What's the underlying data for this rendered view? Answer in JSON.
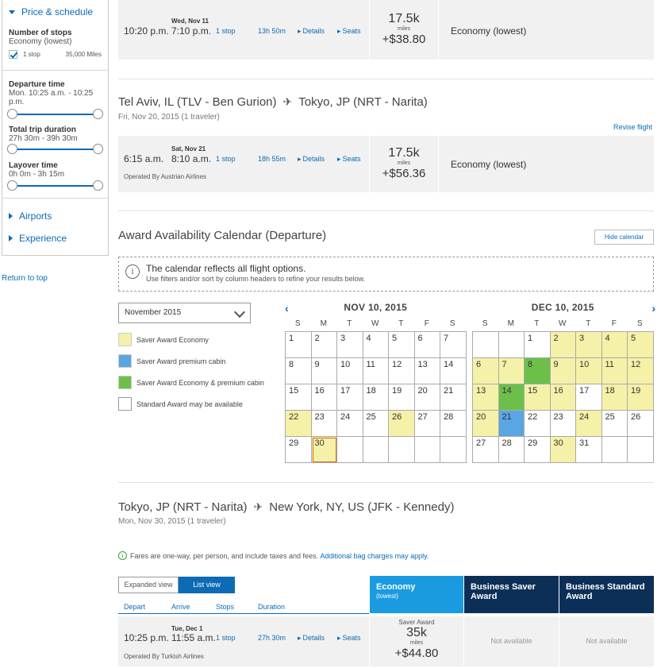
{
  "sidebar": {
    "price_schedule": "Price & schedule",
    "stops_title": "Number of stops",
    "stops_sub": "Economy (lowest)",
    "stop_option": "1 stop",
    "stop_miles": "35,000 Miles",
    "departure_title": "Departure time",
    "departure_range": "Mon. 10:25 a.m. - 10:25 p.m.",
    "trip_title": "Total trip duration",
    "trip_range": "27h 30m - 39h 30m",
    "layover_title": "Layover time",
    "layover_range": "0h 0m - 3h 15m",
    "airports": "Airports",
    "experience": "Experience"
  },
  "return_top": "Return to top",
  "flight1": {
    "depart": "10:20 p.m.",
    "arrive_date": "Wed, Nov 11",
    "arrive": "7:10 p.m.",
    "stops": "1 stop",
    "duration": "13h 50m",
    "details": "Details",
    "seats": "Seats",
    "miles": "17.5k",
    "miles_unit": "miles",
    "price": "+$38.80",
    "cabin": "Economy (lowest)"
  },
  "route2": {
    "from": "Tel Aviv, IL (TLV - Ben Gurion)",
    "to": "Tokyo, JP (NRT - Narita)",
    "date": "Fri, Nov 20, 2015 (1 traveler)",
    "revise": "Revise flight"
  },
  "flight2": {
    "depart": "6:15 a.m.",
    "arrive_date": "Sat, Nov 21",
    "arrive": "8:10 a.m.",
    "stops": "1 stop",
    "duration": "18h 55m",
    "details": "Details",
    "seats": "Seats",
    "operated": "Operated By Austrian Airlines",
    "miles": "17.5k",
    "miles_unit": "miles",
    "price": "+$56.36",
    "cabin": "Economy (lowest)"
  },
  "calendar": {
    "title": "Award Availability Calendar (Departure)",
    "hide": "Hide calendar",
    "note_title": "The calendar reflects all flight options.",
    "note_sub": "Use filters and/or sort by column headers to refine your results below.",
    "month_select": "November 2015",
    "legend": [
      {
        "label": "Saver Award Economy",
        "color": "#f5f1a8"
      },
      {
        "label": "Saver Award premium cabin",
        "color": "#5aa6e3"
      },
      {
        "label": "Saver Award Economy & premium cabin",
        "color": "#6cc04a"
      },
      {
        "label": "Standard Award may be available",
        "color": "#ffffff"
      }
    ],
    "dow": [
      "S",
      "M",
      "T",
      "W",
      "T",
      "F",
      "S"
    ],
    "months": [
      {
        "title": "NOV 10, 2015",
        "cells": [
          {
            "d": "1",
            "c": ""
          },
          {
            "d": "2",
            "c": ""
          },
          {
            "d": "3",
            "c": ""
          },
          {
            "d": "4",
            "c": ""
          },
          {
            "d": "5",
            "c": ""
          },
          {
            "d": "6",
            "c": ""
          },
          {
            "d": "7",
            "c": ""
          },
          {
            "d": "8",
            "c": ""
          },
          {
            "d": "9",
            "c": ""
          },
          {
            "d": "10",
            "c": ""
          },
          {
            "d": "11",
            "c": ""
          },
          {
            "d": "12",
            "c": ""
          },
          {
            "d": "13",
            "c": ""
          },
          {
            "d": "14",
            "c": ""
          },
          {
            "d": "15",
            "c": ""
          },
          {
            "d": "16",
            "c": ""
          },
          {
            "d": "17",
            "c": ""
          },
          {
            "d": "18",
            "c": ""
          },
          {
            "d": "19",
            "c": ""
          },
          {
            "d": "20",
            "c": ""
          },
          {
            "d": "21",
            "c": ""
          },
          {
            "d": "22",
            "c": "y"
          },
          {
            "d": "23",
            "c": ""
          },
          {
            "d": "24",
            "c": ""
          },
          {
            "d": "25",
            "c": ""
          },
          {
            "d": "26",
            "c": "y"
          },
          {
            "d": "27",
            "c": ""
          },
          {
            "d": "28",
            "c": ""
          },
          {
            "d": "29",
            "c": ""
          },
          {
            "d": "30",
            "c": "y today"
          },
          {
            "d": "",
            "c": "empty"
          },
          {
            "d": "",
            "c": "empty"
          },
          {
            "d": "",
            "c": "empty"
          },
          {
            "d": "",
            "c": "empty"
          },
          {
            "d": "",
            "c": "empty"
          }
        ]
      },
      {
        "title": "DEC 10, 2015",
        "cells": [
          {
            "d": "",
            "c": "empty"
          },
          {
            "d": "",
            "c": "empty"
          },
          {
            "d": "1",
            "c": ""
          },
          {
            "d": "2",
            "c": "y"
          },
          {
            "d": "3",
            "c": "y"
          },
          {
            "d": "4",
            "c": "y"
          },
          {
            "d": "5",
            "c": "y"
          },
          {
            "d": "6",
            "c": "y"
          },
          {
            "d": "7",
            "c": "y"
          },
          {
            "d": "8",
            "c": "g"
          },
          {
            "d": "9",
            "c": "y"
          },
          {
            "d": "10",
            "c": "y"
          },
          {
            "d": "11",
            "c": "y"
          },
          {
            "d": "12",
            "c": "y"
          },
          {
            "d": "13",
            "c": "y"
          },
          {
            "d": "14",
            "c": "g"
          },
          {
            "d": "15",
            "c": "y"
          },
          {
            "d": "16",
            "c": "y"
          },
          {
            "d": "17",
            "c": ""
          },
          {
            "d": "18",
            "c": "y"
          },
          {
            "d": "19",
            "c": "y"
          },
          {
            "d": "20",
            "c": "y"
          },
          {
            "d": "21",
            "c": "b"
          },
          {
            "d": "22",
            "c": ""
          },
          {
            "d": "23",
            "c": ""
          },
          {
            "d": "24",
            "c": "y"
          },
          {
            "d": "25",
            "c": ""
          },
          {
            "d": "26",
            "c": ""
          },
          {
            "d": "27",
            "c": ""
          },
          {
            "d": "28",
            "c": ""
          },
          {
            "d": "29",
            "c": ""
          },
          {
            "d": "30",
            "c": "y"
          },
          {
            "d": "31",
            "c": ""
          },
          {
            "d": "",
            "c": "empty"
          },
          {
            "d": "",
            "c": "empty"
          }
        ]
      }
    ]
  },
  "route3": {
    "from": "Tokyo, JP (NRT - Narita)",
    "to": "New York, NY, US (JFK - Kennedy)",
    "date": "Mon, Nov 30, 2015 (1 traveler)",
    "fare_note": "Fares are one-way, per person, and include taxes and fees.",
    "bag_link": "Additional bag charges may apply."
  },
  "results": {
    "expanded_view": "Expanded view",
    "list_view": "List view",
    "col_depart": "Depart",
    "col_arrive": "Arrive",
    "col_stops": "Stops",
    "col_duration": "Duration",
    "hdr_economy": "Economy",
    "hdr_economy_sub": "(lowest)",
    "hdr_bss": "Business Saver Award",
    "hdr_bsd": "Business Standard Award"
  },
  "flight3": {
    "depart": "10:25 p.m.",
    "arrive_date": "Tue, Dec 1",
    "arrive": "11:55 a.m.",
    "stops": "1 stop",
    "duration": "27h 30m",
    "details": "Details",
    "seats": "Seats",
    "operated": "Operated By Turkish Airlines",
    "award_label": "Saver Award",
    "miles": "35k",
    "miles_unit": "miles",
    "price": "+$44.80",
    "not_avail_1": "Not available",
    "not_avail_2": "Not available"
  }
}
